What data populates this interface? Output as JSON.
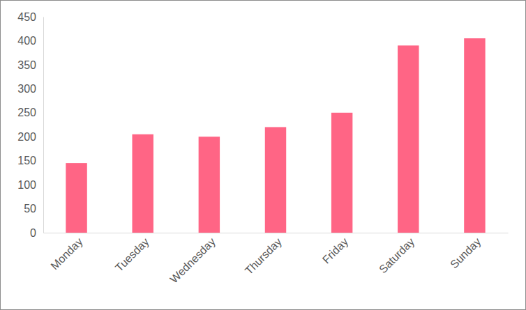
{
  "chart_data": {
    "type": "bar",
    "categories": [
      "Monday",
      "Tuesday",
      "Wednesday",
      "Thursday",
      "Friday",
      "Saturday",
      "Sunday"
    ],
    "values": [
      145,
      205,
      200,
      220,
      250,
      390,
      405
    ],
    "color": "#ff6585",
    "ylim": [
      0,
      450
    ],
    "yticks": [
      0,
      50,
      100,
      150,
      200,
      250,
      300,
      350,
      400,
      450
    ],
    "grid": false
  }
}
